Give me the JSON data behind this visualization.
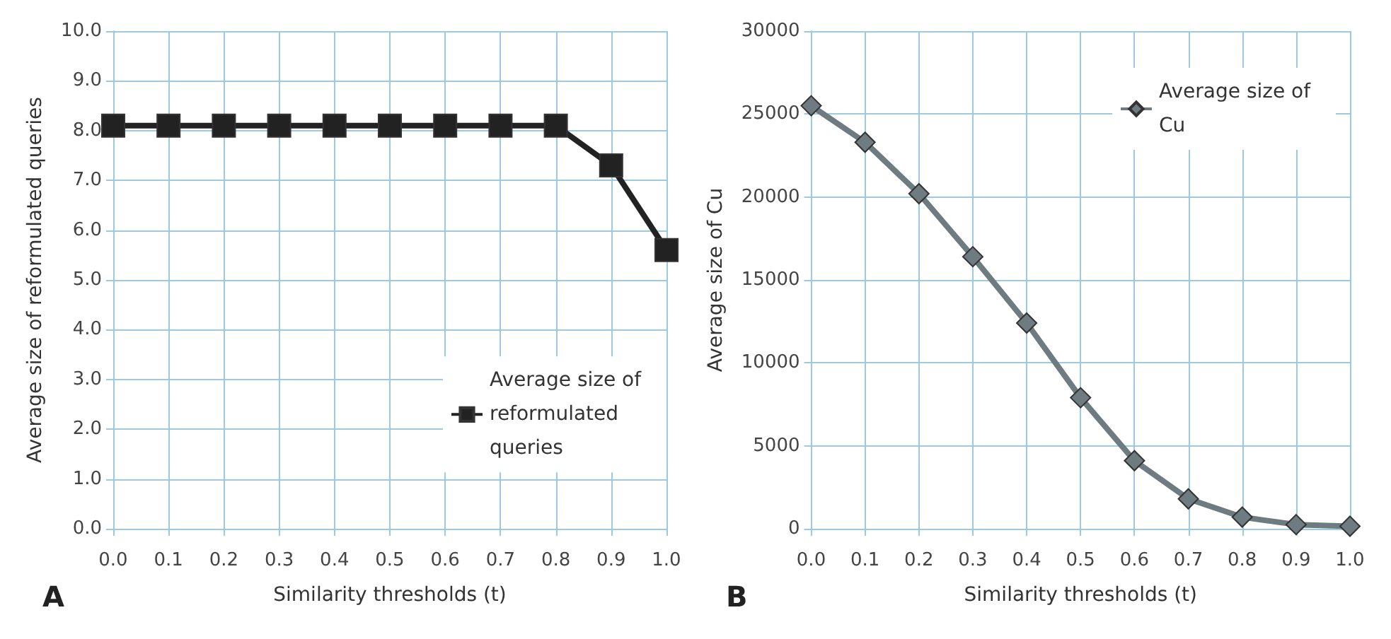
{
  "chart_data": [
    {
      "type": "line",
      "categories": [
        "0.0",
        "0.1",
        "0.2",
        "0.3",
        "0.4",
        "0.5",
        "0.6",
        "0.7",
        "0.8",
        "0.9",
        "1.0"
      ],
      "series": [
        {
          "name": "Average size of reformulated queries",
          "color": "#222222",
          "values": [
            8.1,
            8.1,
            8.1,
            8.1,
            8.1,
            8.1,
            8.1,
            8.1,
            8.1,
            7.3,
            5.6
          ]
        }
      ],
      "xlabel": "Similarity thresholds (t)",
      "ylabel": "Average size of reformulated queries",
      "ylim": [
        0,
        10
      ],
      "yticks": [
        {
          "value": 0,
          "label": "0.0"
        },
        {
          "value": 1,
          "label": "1.0"
        },
        {
          "value": 2,
          "label": "2.0"
        },
        {
          "value": 3,
          "label": "3.0"
        },
        {
          "value": 4,
          "label": "4.0"
        },
        {
          "value": 5,
          "label": "5.0"
        },
        {
          "value": 6,
          "label": "6.0"
        },
        {
          "value": 7,
          "label": "7.0"
        },
        {
          "value": 8,
          "label": "8.0"
        },
        {
          "value": 9,
          "label": "9.0"
        },
        {
          "value": 10,
          "label": "10.0"
        }
      ],
      "grid": true,
      "legend": "right",
      "marker": "square",
      "annotations": [
        "A"
      ]
    },
    {
      "type": "line",
      "categories": [
        "0.0",
        "0.1",
        "0.2",
        "0.3",
        "0.4",
        "0.5",
        "0.6",
        "0.7",
        "0.8",
        "0.9",
        "1.0"
      ],
      "series": [
        {
          "name": "Average size of Cu",
          "color": "#6e7b80",
          "values": [
            25500,
            23300,
            20200,
            16400,
            12400,
            7900,
            4100,
            1800,
            700,
            250,
            150
          ]
        }
      ],
      "xlabel": "Similarity thresholds (t)",
      "ylabel": "Average size of Cu",
      "ylim": [
        0,
        30000
      ],
      "yticks": [
        0,
        5000,
        10000,
        15000,
        20000,
        25000,
        30000
      ],
      "grid": true,
      "legend": "top right",
      "marker": "diamond",
      "annotations": [
        "B"
      ]
    }
  ]
}
